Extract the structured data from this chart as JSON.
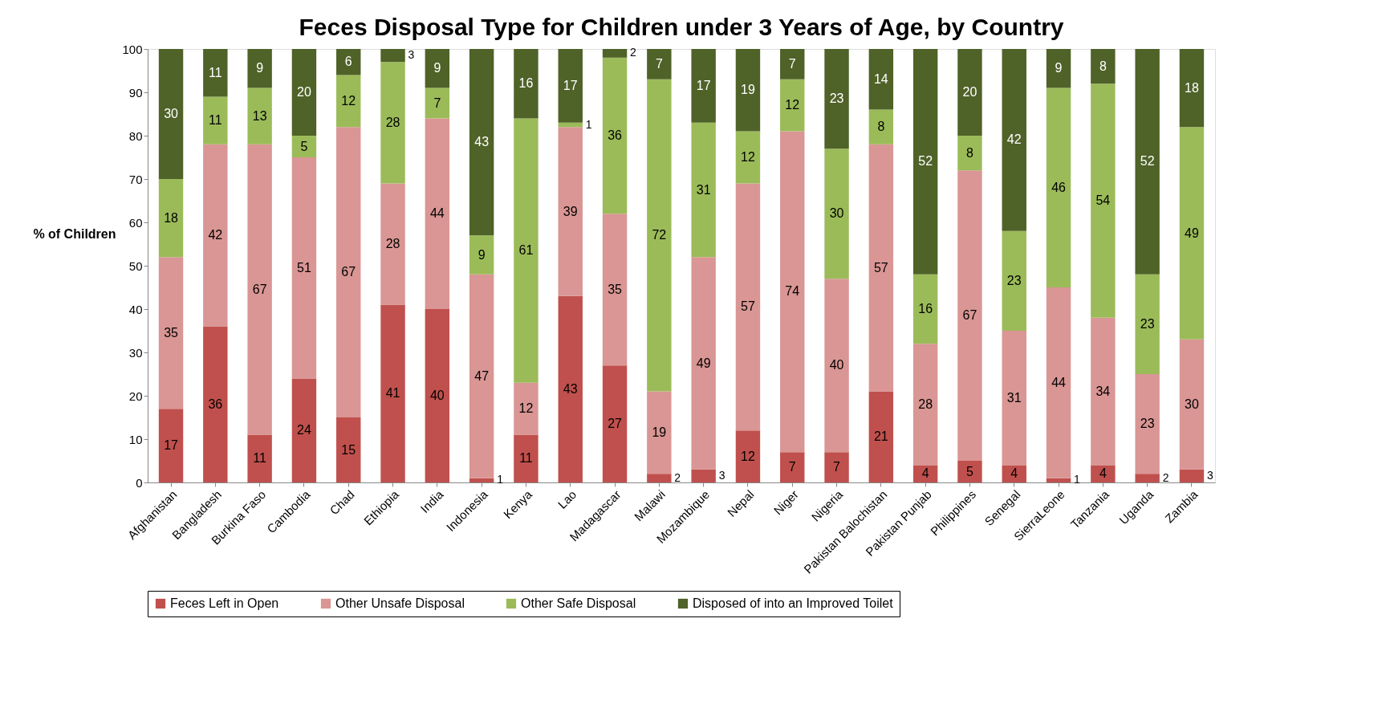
{
  "chart_data": {
    "type": "bar",
    "title": "Feces Disposal Type for Children under 3 Years of Age, by Country",
    "ylabel": "% of Children",
    "categories": [
      "Afghanistan",
      "Bangladesh",
      "Burkina Faso",
      "Cambodia",
      "Chad",
      "Ethiopia",
      "India",
      "Indonesia",
      "Kenya",
      "Lao",
      "Madagascar",
      "Malawi",
      "Mozambique",
      "Nepal",
      "Niger",
      "Nigeria",
      "Pakistan Balochistan",
      "Pakistan Punjab",
      "Philippines",
      "Senegal",
      "SierraLeone",
      "Tanzania",
      "Uganda",
      "Zambia"
    ],
    "series": [
      {
        "name": "Feces Left in Open",
        "color": "#c0504d",
        "values": [
          17,
          36,
          11,
          24,
          15,
          41,
          40,
          1,
          11,
          43,
          27,
          2,
          3,
          12,
          7,
          7,
          21,
          4,
          5,
          4,
          1,
          4,
          2,
          3
        ]
      },
      {
        "name": "Other Unsafe Disposal",
        "color": "#d99694",
        "values": [
          35,
          42,
          67,
          51,
          67,
          28,
          44,
          47,
          12,
          39,
          35,
          19,
          49,
          57,
          74,
          40,
          57,
          28,
          67,
          31,
          44,
          34,
          23,
          30
        ]
      },
      {
        "name": "Other Safe Disposal",
        "color": "#9bbb59",
        "values": [
          18,
          11,
          13,
          5,
          12,
          28,
          7,
          9,
          61,
          1,
          36,
          72,
          31,
          12,
          12,
          30,
          8,
          16,
          8,
          23,
          46,
          54,
          23,
          49
        ]
      },
      {
        "name": "Disposed of into an Improved Toilet",
        "color": "#4f6228",
        "values": [
          30,
          11,
          9,
          20,
          6,
          3,
          9,
          43,
          16,
          17,
          2,
          7,
          17,
          19,
          7,
          23,
          14,
          52,
          20,
          42,
          9,
          8,
          52,
          18
        ]
      }
    ],
    "stacked": true,
    "ylim": [
      0,
      100
    ],
    "yticks": [
      0,
      10,
      20,
      30,
      40,
      50,
      60,
      70,
      80,
      90,
      100
    ],
    "grid": false,
    "legend": "bottom",
    "data_labels": true
  }
}
